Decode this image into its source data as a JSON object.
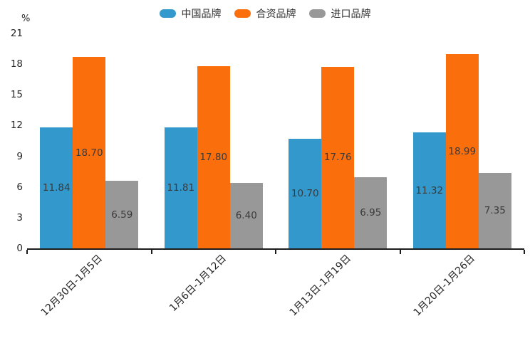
{
  "chart_data": {
    "type": "bar",
    "title": "",
    "categories": [
      "12月30日-1月5日",
      "1月6日-1月12日",
      "1月13日-1月19日",
      "1月20日-1月26日"
    ],
    "series": [
      {
        "name": "中国品牌",
        "color": "#3398CC",
        "values": [
          11.84,
          11.81,
          10.7,
          11.32
        ]
      },
      {
        "name": "合资品牌",
        "color": "#FB6E0C",
        "values": [
          18.7,
          17.8,
          17.76,
          18.99
        ]
      },
      {
        "name": "进口品牌",
        "color": "#989898",
        "values": [
          6.59,
          6.4,
          6.95,
          7.35
        ]
      }
    ],
    "xlabel": "",
    "ylabel": "%",
    "ylim": [
      0,
      21
    ],
    "ytick_step": 3,
    "ytick_labels": [
      "0",
      "3",
      "6",
      "9",
      "12",
      "15",
      "18",
      "21"
    ],
    "grid": false,
    "legend_position": "top-center",
    "bar_labels": "inside bars at mid-height, two decimals",
    "x_tick_rotation_deg": 45
  },
  "colors": {
    "background": "#FFFFFF",
    "axis_line": "#1C1C1C",
    "tick_label_text": "#262626",
    "bar_label_text": "#3A3A3A",
    "legend_text": "#333333"
  }
}
